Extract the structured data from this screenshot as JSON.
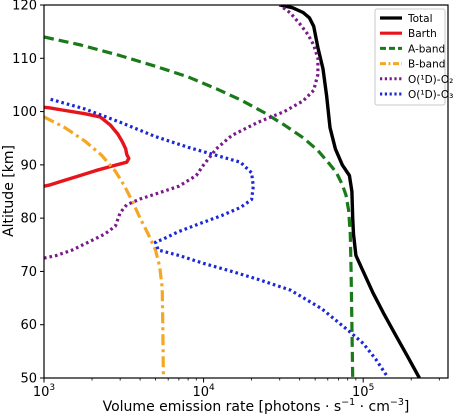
{
  "chart_data": {
    "type": "line",
    "title": "",
    "xlabel_main": "Volume emission rate [photons · s",
    "xlabel_exp1": "−1",
    "xlabel_mid": " · cm",
    "xlabel_exp2": "−3",
    "xlabel_end": "]",
    "ylabel": "Altitude [km]",
    "xscale": "log",
    "xlim": [
      1000,
      340000
    ],
    "ylim": [
      50,
      120
    ],
    "xticks": [
      {
        "base": "10",
        "exp": "3",
        "value": 1000
      },
      {
        "base": "10",
        "exp": "4",
        "value": 10000
      },
      {
        "base": "10",
        "exp": "5",
        "value": 100000
      }
    ],
    "yticks": [
      50,
      60,
      70,
      80,
      90,
      100,
      110,
      120
    ],
    "grid": false,
    "legend_position": "top-right",
    "series": [
      {
        "name": "Total",
        "color": "#000000",
        "dash": "solid",
        "points": [
          [
            30000,
            120
          ],
          [
            36000,
            119.5
          ],
          [
            42000,
            118.6
          ],
          [
            46000,
            117.6
          ],
          [
            49000,
            116
          ],
          [
            52000,
            112
          ],
          [
            56000,
            108
          ],
          [
            59000,
            103
          ],
          [
            62000,
            97
          ],
          [
            67000,
            93
          ],
          [
            74000,
            90
          ],
          [
            82000,
            88
          ],
          [
            85000,
            85
          ],
          [
            86000,
            80
          ],
          [
            87000,
            77
          ],
          [
            90000,
            73
          ],
          [
            100000,
            70
          ],
          [
            115000,
            66
          ],
          [
            135000,
            62
          ],
          [
            160000,
            58
          ],
          [
            190000,
            54
          ],
          [
            225000,
            50
          ]
        ]
      },
      {
        "name": "Barth",
        "color": "#e8141c",
        "dash": "solid",
        "points": [
          [
            1000,
            86
          ],
          [
            1080,
            86.2
          ],
          [
            1250,
            86.8
          ],
          [
            1600,
            87.8
          ],
          [
            2100,
            88.9
          ],
          [
            2700,
            89.8
          ],
          [
            3300,
            90.5
          ],
          [
            3400,
            91.2
          ],
          [
            3300,
            92
          ],
          [
            3250,
            93
          ],
          [
            3100,
            94.3
          ],
          [
            2900,
            95.8
          ],
          [
            2600,
            97.5
          ],
          [
            2250,
            99
          ],
          [
            1800,
            99.6
          ],
          [
            1300,
            100.3
          ],
          [
            1080,
            100.7
          ],
          [
            1000,
            100.8
          ]
        ]
      },
      {
        "name": "A-band",
        "color": "#1a7a1a",
        "dash": "dash",
        "points": [
          [
            1000,
            114
          ],
          [
            1700,
            112.5
          ],
          [
            3000,
            110.5
          ],
          [
            5000,
            108.5
          ],
          [
            8000,
            106.5
          ],
          [
            12000,
            104.3
          ],
          [
            17000,
            102.2
          ],
          [
            24000,
            99.8
          ],
          [
            32000,
            97.5
          ],
          [
            42000,
            95.1
          ],
          [
            52000,
            92.7
          ],
          [
            61000,
            90.3
          ],
          [
            68000,
            88.5
          ],
          [
            74000,
            86.3
          ],
          [
            78000,
            84.3
          ],
          [
            81000,
            81.5
          ],
          [
            83000,
            77
          ],
          [
            84000,
            70
          ],
          [
            85000,
            60
          ],
          [
            86000,
            50
          ]
        ]
      },
      {
        "name": "B-band",
        "color": "#f5a623",
        "dash": "dashdot",
        "points": [
          [
            1000,
            99
          ],
          [
            1350,
            97
          ],
          [
            1800,
            94.5
          ],
          [
            2300,
            91.8
          ],
          [
            2800,
            88.8
          ],
          [
            3200,
            86
          ],
          [
            3600,
            83
          ],
          [
            4000,
            80
          ],
          [
            4500,
            77
          ],
          [
            5000,
            74
          ],
          [
            5300,
            71
          ],
          [
            5500,
            67
          ],
          [
            5550,
            60
          ],
          [
            5600,
            50
          ]
        ]
      },
      {
        "name": "O(¹D)-O₂",
        "color": "#7a1a8a",
        "dash": "dot",
        "points": [
          [
            1000,
            72.5
          ],
          [
            1200,
            73
          ],
          [
            1500,
            74
          ],
          [
            1900,
            75.5
          ],
          [
            2400,
            77
          ],
          [
            2800,
            78.5
          ],
          [
            3000,
            81
          ],
          [
            3300,
            82.5
          ],
          [
            4000,
            83.6
          ],
          [
            5200,
            84.7
          ],
          [
            7000,
            86
          ],
          [
            9000,
            88
          ],
          [
            10000,
            90
          ],
          [
            12000,
            93
          ],
          [
            15000,
            95.5
          ],
          [
            22000,
            98
          ],
          [
            32000,
            100
          ],
          [
            42000,
            102
          ],
          [
            49000,
            104
          ],
          [
            52000,
            107
          ],
          [
            52000,
            110
          ],
          [
            49000,
            112.5
          ],
          [
            45000,
            114.5
          ],
          [
            40000,
            116.5
          ],
          [
            35000,
            118.5
          ],
          [
            30000,
            120
          ]
        ]
      },
      {
        "name": "O(¹D)-O₃",
        "color": "#1a28d8",
        "dash": "dot",
        "points": [
          [
            1100,
            102.3
          ],
          [
            1800,
            100.5
          ],
          [
            3000,
            98
          ],
          [
            5000,
            95.3
          ],
          [
            8000,
            93.3
          ],
          [
            12000,
            91.8
          ],
          [
            17000,
            90.5
          ],
          [
            20000,
            88.5
          ],
          [
            20500,
            86
          ],
          [
            20000,
            83.5
          ],
          [
            17000,
            82
          ],
          [
            13000,
            80.5
          ],
          [
            9500,
            79
          ],
          [
            7000,
            77.5
          ],
          [
            5500,
            76
          ],
          [
            5000,
            75.5
          ],
          [
            5200,
            74
          ],
          [
            7000,
            73
          ],
          [
            10000,
            71.5
          ],
          [
            15000,
            70
          ],
          [
            22000,
            68.5
          ],
          [
            35000,
            66.5
          ],
          [
            55000,
            63
          ],
          [
            80000,
            59
          ],
          [
            100000,
            56.5
          ],
          [
            120000,
            53.5
          ],
          [
            140000,
            50.5
          ]
        ]
      }
    ]
  }
}
